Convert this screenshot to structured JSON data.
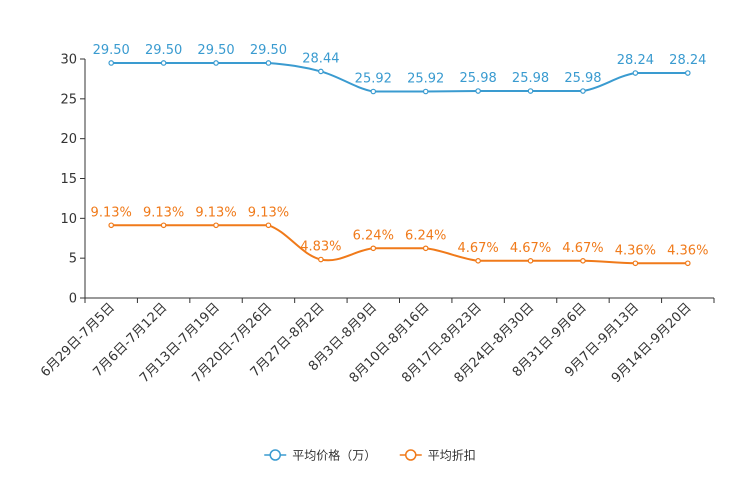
{
  "chart_data": {
    "type": "line",
    "title": "",
    "xlabel": "",
    "ylabel": "",
    "ylim": [
      0,
      30
    ],
    "yticks": [
      0,
      5,
      10,
      15,
      20,
      25,
      30
    ],
    "grid": false,
    "legend_position": "bottom-center",
    "categories": [
      "6月29日-7月5日",
      "7月6日-7月12日",
      "7月13日-7月19日",
      "7月20日-7月26日",
      "7月27日-8月2日",
      "8月3日-8月9日",
      "8月10日-8月16日",
      "8月17日-8月23日",
      "8月24日-8月30日",
      "8月31日-9月6日",
      "9月7日-9月13日",
      "9月14日-9月20日"
    ],
    "series": [
      {
        "name": "平均价格（万）",
        "color": "#3a9bd0",
        "values": [
          29.5,
          29.5,
          29.5,
          29.5,
          28.44,
          25.92,
          25.92,
          25.98,
          25.98,
          25.98,
          28.24,
          28.24
        ],
        "labels": [
          "29.50",
          "29.50",
          "29.50",
          "29.50",
          "28.44",
          "25.92",
          "25.92",
          "25.98",
          "25.98",
          "25.98",
          "28.24",
          "28.24"
        ]
      },
      {
        "name": "平均折扣",
        "color": "#f07a1a",
        "values": [
          9.13,
          9.13,
          9.13,
          9.13,
          4.83,
          6.24,
          6.24,
          4.67,
          4.67,
          4.67,
          4.36,
          4.36
        ],
        "labels": [
          "9.13%",
          "9.13%",
          "9.13%",
          "9.13%",
          "4.83%",
          "6.24%",
          "6.24%",
          "4.67%",
          "4.67%",
          "4.67%",
          "4.36%",
          "4.36%"
        ]
      }
    ]
  }
}
